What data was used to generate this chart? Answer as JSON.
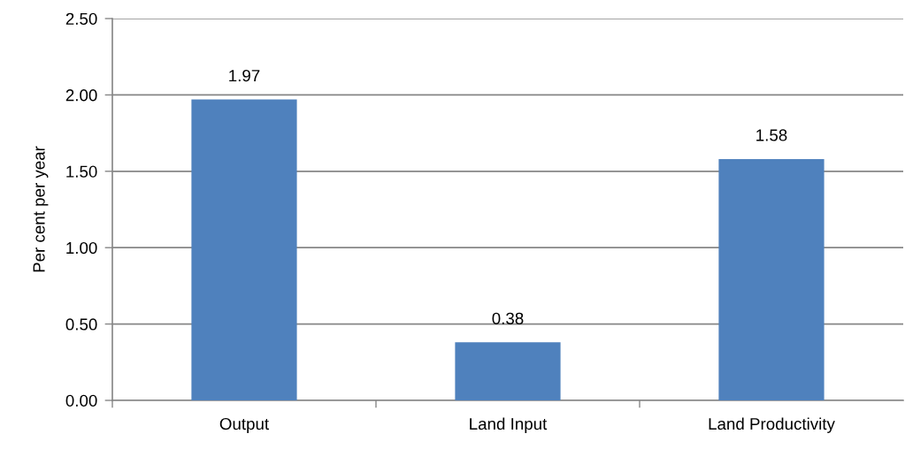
{
  "chart_data": {
    "type": "bar",
    "ylabel": "Per cent per year",
    "categories": [
      "Output",
      "Land Input",
      "Land Productivity"
    ],
    "values": [
      1.97,
      0.38,
      1.58
    ],
    "color": "#4f81bd",
    "ylim": [
      0,
      2.5
    ],
    "yticks": [
      {
        "value": 0,
        "label": "0.00"
      },
      {
        "value": 0.5,
        "label": "0.50"
      },
      {
        "value": 1.0,
        "label": "1.00"
      },
      {
        "value": 1.5,
        "label": "1.50"
      },
      {
        "value": 2.0,
        "label": "2.00"
      },
      {
        "value": 2.5,
        "label": "2.50"
      }
    ],
    "grid": "y",
    "data_labels": true,
    "legend": false
  }
}
